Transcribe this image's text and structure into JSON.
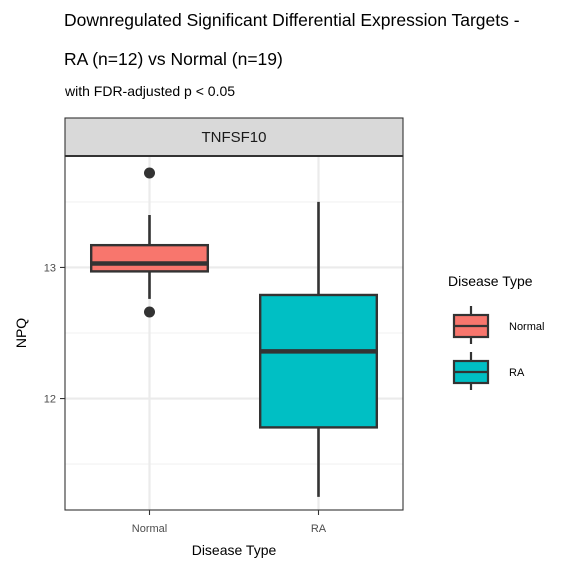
{
  "chart_data": {
    "type": "boxplot",
    "title_line1": "Downregulated Significant Differential Expression Targets -",
    "title_line2": "RA (n=12) vs Normal (n=19)",
    "subtitle": "with FDR-adjusted p < 0.05",
    "facet": "TNFSF10",
    "xlabel": "Disease Type",
    "ylabel": "NPQ",
    "ylim": [
      11.15,
      13.85
    ],
    "y_ticks": [
      12,
      13
    ],
    "categories": [
      "Normal",
      "RA"
    ],
    "boxes": [
      {
        "category": "Normal",
        "whisker_low": 12.76,
        "q1": 12.97,
        "median": 13.03,
        "q3": 13.17,
        "whisker_high": 13.4,
        "outliers": [
          13.72,
          12.66
        ],
        "color": "#F8766D"
      },
      {
        "category": "RA",
        "whisker_low": 11.25,
        "q1": 11.78,
        "median": 12.36,
        "q3": 12.79,
        "whisker_high": 13.5,
        "outliers": [],
        "color": "#00BFC4"
      }
    ],
    "legend": {
      "title": "Disease Type",
      "entries": [
        "Normal",
        "RA"
      ],
      "position": "right"
    },
    "grid": true
  }
}
